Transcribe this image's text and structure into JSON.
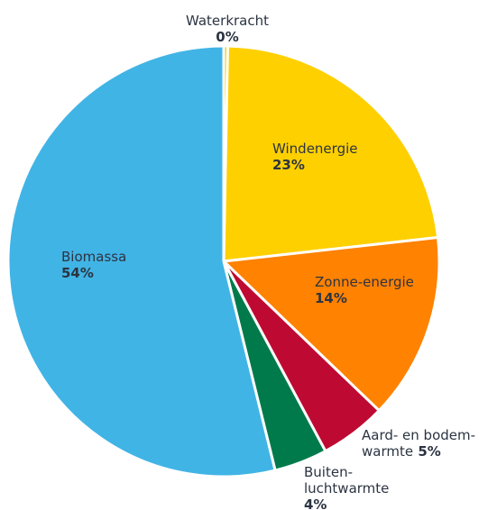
{
  "chart_data": {
    "type": "pie",
    "slices": [
      {
        "label_lines": [
          "Waterkracht"
        ],
        "value": 0.3,
        "display": "0%",
        "color": "#F6C800"
      },
      {
        "label_lines": [
          "Windenergie"
        ],
        "value": 23,
        "display": "23%",
        "color": "#FFD000"
      },
      {
        "label_lines": [
          "Zonne-energie"
        ],
        "value": 14,
        "display": "14%",
        "color": "#FF8200"
      },
      {
        "label_lines": [
          "Aard- en bodem-",
          "warmte"
        ],
        "value": 5,
        "display": "5%",
        "color": "#BE0A32"
      },
      {
        "label_lines": [
          "Buiten-",
          "luchtwarmte"
        ],
        "value": 4,
        "display": "4%",
        "color": "#007A4B"
      },
      {
        "label_lines": [
          "Biomassa"
        ],
        "value": 54,
        "display": "54%",
        "color": "#41B4E6"
      }
    ]
  }
}
